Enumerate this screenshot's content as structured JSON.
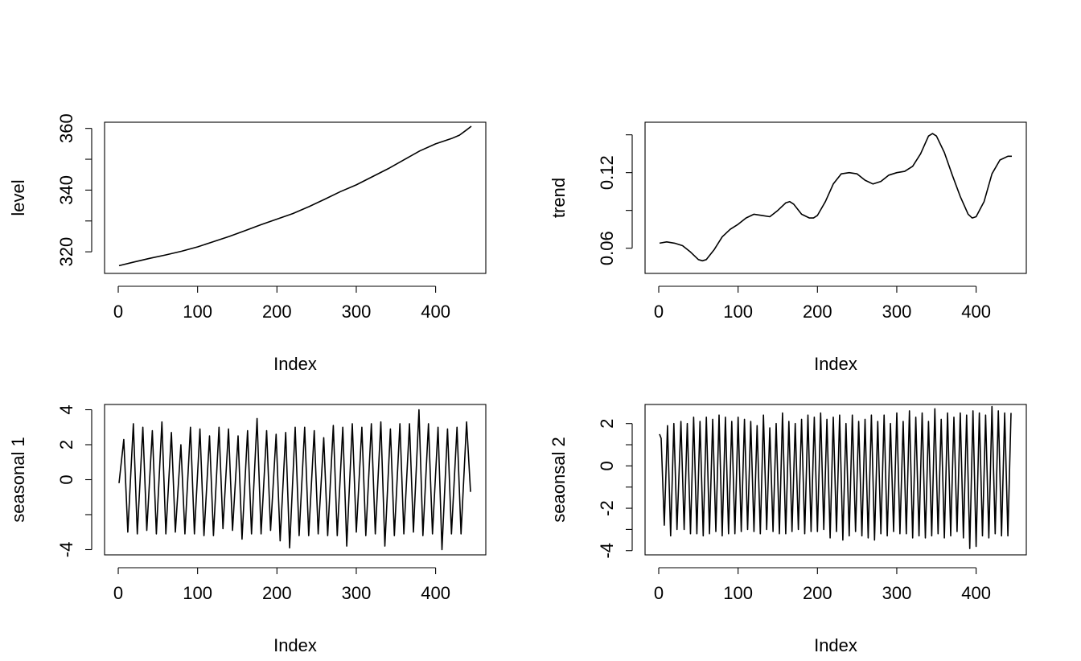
{
  "chart_data": [
    {
      "type": "line",
      "xlabel": "Index",
      "ylabel": "level",
      "xlim": [
        0,
        445
      ],
      "ylim": [
        313,
        362
      ],
      "xticks": [
        0,
        100,
        200,
        300,
        400
      ],
      "xtick_labels": [
        "0",
        "100",
        "200",
        "300",
        "400"
      ],
      "yticks": [
        320,
        330,
        340,
        350,
        360
      ],
      "ytick_labels": [
        "320",
        "",
        "340",
        "",
        "360"
      ],
      "grid": false,
      "x": [
        1,
        20,
        40,
        60,
        80,
        100,
        120,
        140,
        160,
        180,
        200,
        220,
        240,
        260,
        280,
        300,
        320,
        340,
        360,
        380,
        400,
        420,
        430,
        440,
        445
      ],
      "y": [
        315.5,
        316.7,
        317.9,
        319.0,
        320.2,
        321.6,
        323.3,
        325.0,
        326.9,
        328.8,
        330.6,
        332.4,
        334.6,
        337.0,
        339.5,
        341.7,
        344.3,
        346.9,
        349.8,
        352.7,
        355.0,
        356.7,
        357.8,
        359.7,
        360.7
      ]
    },
    {
      "type": "line",
      "xlabel": "Index",
      "ylabel": "trend",
      "xlim": [
        0,
        445
      ],
      "ylim": [
        0.04,
        0.16
      ],
      "xticks": [
        0,
        100,
        200,
        300,
        400
      ],
      "xtick_labels": [
        "0",
        "100",
        "200",
        "300",
        "400"
      ],
      "yticks": [
        0.06,
        0.09,
        0.12,
        0.15
      ],
      "ytick_labels": [
        "0.06",
        "",
        "0.12",
        ""
      ],
      "grid": false,
      "x": [
        1,
        10,
        20,
        30,
        40,
        50,
        55,
        60,
        70,
        80,
        90,
        100,
        110,
        120,
        130,
        140,
        150,
        160,
        165,
        170,
        180,
        190,
        195,
        200,
        210,
        220,
        230,
        240,
        250,
        260,
        270,
        280,
        290,
        300,
        310,
        320,
        330,
        340,
        345,
        350,
        360,
        370,
        380,
        390,
        395,
        400,
        410,
        420,
        430,
        440,
        445
      ],
      "y": [
        0.064,
        0.065,
        0.064,
        0.062,
        0.057,
        0.051,
        0.05,
        0.051,
        0.059,
        0.069,
        0.075,
        0.079,
        0.084,
        0.087,
        0.086,
        0.085,
        0.09,
        0.096,
        0.097,
        0.095,
        0.087,
        0.084,
        0.084,
        0.086,
        0.097,
        0.111,
        0.119,
        0.12,
        0.119,
        0.114,
        0.111,
        0.113,
        0.118,
        0.12,
        0.121,
        0.125,
        0.135,
        0.149,
        0.151,
        0.149,
        0.136,
        0.118,
        0.101,
        0.087,
        0.084,
        0.085,
        0.097,
        0.119,
        0.13,
        0.133,
        0.133
      ]
    },
    {
      "type": "line",
      "xlabel": "Index",
      "ylabel": "seasonal 1",
      "xlim": [
        0,
        445
      ],
      "ylim": [
        -4.3,
        4.3
      ],
      "xticks": [
        0,
        100,
        200,
        300,
        400
      ],
      "xtick_labels": [
        "0",
        "100",
        "200",
        "300",
        "400"
      ],
      "yticks": [
        -4,
        -2,
        0,
        2,
        4
      ],
      "ytick_labels": [
        "-4",
        "",
        "0",
        "2",
        "4"
      ],
      "grid": false,
      "period": 12,
      "x": [
        1,
        7,
        12,
        19,
        24,
        31,
        36,
        43,
        48,
        55,
        60,
        67,
        72,
        79,
        84,
        91,
        96,
        103,
        108,
        115,
        120,
        127,
        132,
        139,
        144,
        151,
        156,
        163,
        168,
        175,
        180,
        187,
        192,
        199,
        204,
        211,
        216,
        223,
        228,
        235,
        240,
        247,
        252,
        259,
        264,
        271,
        276,
        283,
        288,
        295,
        300,
        307,
        312,
        319,
        324,
        331,
        336,
        343,
        348,
        355,
        360,
        367,
        372,
        379,
        384,
        391,
        396,
        403,
        408,
        415,
        420,
        427,
        432,
        439,
        444
      ],
      "y": [
        -0.2,
        2.3,
        -3.0,
        3.2,
        -3.1,
        3.0,
        -2.9,
        2.8,
        -3.1,
        3.3,
        -3.1,
        2.7,
        -3.0,
        2.0,
        -3.1,
        3.0,
        -3.1,
        2.9,
        -3.2,
        2.5,
        -3.2,
        3.0,
        -2.8,
        2.9,
        -2.9,
        2.5,
        -3.4,
        2.8,
        -3.1,
        3.5,
        -3.1,
        2.8,
        -2.9,
        2.6,
        -3.5,
        2.7,
        -3.9,
        3.0,
        -3.2,
        3.0,
        -3.2,
        2.8,
        -3.1,
        2.4,
        -3.2,
        3.1,
        -3.2,
        3.0,
        -3.8,
        3.2,
        -3.0,
        3.0,
        -3.2,
        3.2,
        -3.1,
        3.3,
        -3.8,
        2.9,
        -3.2,
        3.2,
        -3.1,
        3.2,
        -3.0,
        4.0,
        -3.2,
        3.2,
        -3.1,
        3.0,
        -4.0,
        2.9,
        -3.1,
        3.0,
        -3.1,
        3.3,
        -0.7
      ]
    },
    {
      "type": "line",
      "xlabel": "Index",
      "ylabel": "seaonsal 2",
      "xlim": [
        0,
        445
      ],
      "ylim": [
        -4.2,
        2.9
      ],
      "xticks": [
        0,
        100,
        200,
        300,
        400
      ],
      "xtick_labels": [
        "0",
        "100",
        "200",
        "300",
        "400"
      ],
      "yticks": [
        -4,
        -3,
        -2,
        -1,
        0,
        1,
        2
      ],
      "ytick_labels": [
        "-4",
        "",
        "-2",
        "",
        "0",
        "",
        "2"
      ],
      "grid": false,
      "period": 6,
      "x": [
        1,
        3,
        7,
        11,
        15,
        19,
        23,
        28,
        32,
        36,
        40,
        44,
        48,
        52,
        56,
        60,
        64,
        68,
        72,
        76,
        80,
        84,
        88,
        92,
        96,
        100,
        104,
        108,
        112,
        116,
        120,
        124,
        128,
        132,
        136,
        140,
        144,
        148,
        152,
        156,
        160,
        164,
        168,
        172,
        176,
        180,
        184,
        188,
        192,
        196,
        200,
        204,
        208,
        212,
        216,
        220,
        224,
        228,
        232,
        236,
        240,
        244,
        248,
        252,
        256,
        260,
        264,
        268,
        272,
        276,
        280,
        284,
        288,
        292,
        296,
        300,
        304,
        308,
        312,
        316,
        320,
        324,
        328,
        332,
        336,
        340,
        344,
        348,
        352,
        356,
        360,
        364,
        368,
        372,
        376,
        380,
        384,
        388,
        392,
        396,
        400,
        404,
        408,
        412,
        416,
        420,
        424,
        428,
        432,
        436,
        440,
        444
      ],
      "y": [
        1.5,
        1.3,
        -2.8,
        1.9,
        -3.3,
        2.0,
        -3.0,
        2.1,
        -3.0,
        2.0,
        -3.2,
        2.3,
        -3.2,
        2.1,
        -3.3,
        2.3,
        -3.2,
        2.2,
        -3.1,
        2.4,
        -3.3,
        2.3,
        -3.2,
        2.1,
        -3.2,
        2.3,
        -3.1,
        2.2,
        -3.0,
        2.1,
        -3.1,
        1.9,
        -3.2,
        2.4,
        -3.0,
        1.8,
        -3.1,
        2.0,
        -3.2,
        2.5,
        -3.2,
        2.1,
        -3.1,
        2.0,
        -3.0,
        2.2,
        -3.2,
        2.4,
        -3.1,
        2.3,
        -3.1,
        2.5,
        -3.0,
        2.2,
        -3.4,
        2.3,
        -3.1,
        2.4,
        -3.5,
        2.0,
        -3.3,
        2.4,
        -3.1,
        2.1,
        -3.3,
        2.2,
        -3.4,
        2.4,
        -3.5,
        2.1,
        -3.2,
        2.4,
        -3.3,
        2.0,
        -3.1,
        2.5,
        -3.2,
        2.1,
        -3.2,
        2.6,
        -3.4,
        2.3,
        -3.3,
        2.5,
        -3.4,
        2.1,
        -3.3,
        2.7,
        -3.2,
        2.2,
        -3.4,
        2.5,
        -3.3,
        2.3,
        -3.1,
        2.5,
        -3.4,
        2.4,
        -3.9,
        2.6,
        -3.8,
        2.5,
        -3.3,
        2.4,
        -3.4,
        2.8,
        -3.2,
        2.6,
        -3.3,
        2.5,
        -3.3,
        2.5
      ]
    }
  ]
}
